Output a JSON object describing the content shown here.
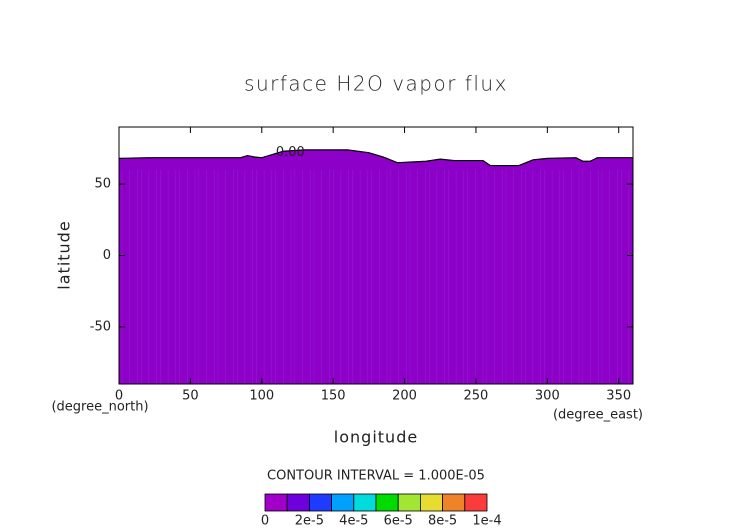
{
  "chart_data": {
    "type": "contour",
    "title": "surface H2O vapor flux",
    "x_label": "longitude",
    "y_label": "latitude",
    "y_unit": "(degree_north)",
    "x_unit": "(degree_east)",
    "xlim": [
      0,
      360
    ],
    "ylim": [
      -90,
      90
    ],
    "xticks": [
      0,
      50,
      100,
      150,
      200,
      250,
      300,
      350
    ],
    "yticks": [
      -50,
      0,
      50
    ],
    "fill_color": "#8c00c8",
    "contour": {
      "label": "0.00",
      "color": "#000000",
      "lon": [
        0,
        20,
        60,
        85,
        90,
        95,
        100,
        105,
        115,
        130,
        160,
        175,
        185,
        195,
        215,
        225,
        235,
        255,
        260,
        280,
        290,
        300,
        320,
        325,
        330,
        335,
        360
      ],
      "lat": [
        68,
        68.5,
        68.5,
        68.5,
        70,
        69,
        68.5,
        70,
        73,
        74,
        74,
        72,
        69,
        65,
        66,
        67.5,
        66.5,
        66.5,
        63,
        63,
        67,
        68,
        68.5,
        66,
        66,
        68.5,
        68.5
      ]
    },
    "contour_interval": "CONTOUR INTERVAL = 1.000E-05",
    "colorbar": {
      "lim": [
        0,
        0.0001
      ],
      "colors": [
        "#a000c8",
        "#6e00dc",
        "#1e3cff",
        "#00a0ff",
        "#00dcdc",
        "#00dc00",
        "#a0e632",
        "#e6dc32",
        "#f08228",
        "#fa3c3c"
      ],
      "ticks": [
        0,
        {
          "value": 2e-05,
          "label": "2e-5"
        },
        {
          "value": 4e-05,
          "label": "4e-5"
        },
        {
          "value": 6e-05,
          "label": "6e-5"
        },
        {
          "value": 8e-05,
          "label": "8e-5"
        },
        {
          "value": 0.0001,
          "label": "1e-4"
        }
      ]
    }
  }
}
